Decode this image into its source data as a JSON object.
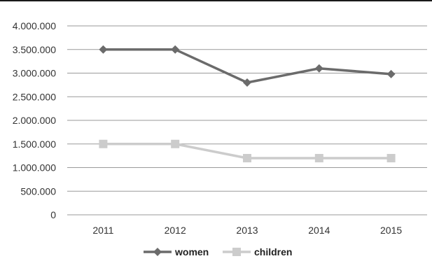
{
  "chart_data": {
    "type": "line",
    "categories": [
      "2011",
      "2012",
      "2013",
      "2014",
      "2015"
    ],
    "series": [
      {
        "name": "women",
        "values": [
          3500000,
          3500000,
          2800000,
          3100000,
          2980000
        ],
        "color": "#6b6b6b",
        "marker": "diamond"
      },
      {
        "name": "children",
        "values": [
          1500000,
          1500000,
          1200000,
          1200000,
          1200000
        ],
        "color": "#cccccc",
        "marker": "square"
      }
    ],
    "y_ticks": [
      "0",
      "500.000",
      "1.000.000",
      "1.500.000",
      "2.000.000",
      "2.500.000",
      "3.000.000",
      "3.500.000",
      "4.000.000"
    ],
    "ylim": [
      0,
      4000000
    ],
    "title": "",
    "xlabel": "",
    "ylabel": "",
    "grid": true,
    "legend": "bottom",
    "gridline_color": "#9a9a9a"
  }
}
